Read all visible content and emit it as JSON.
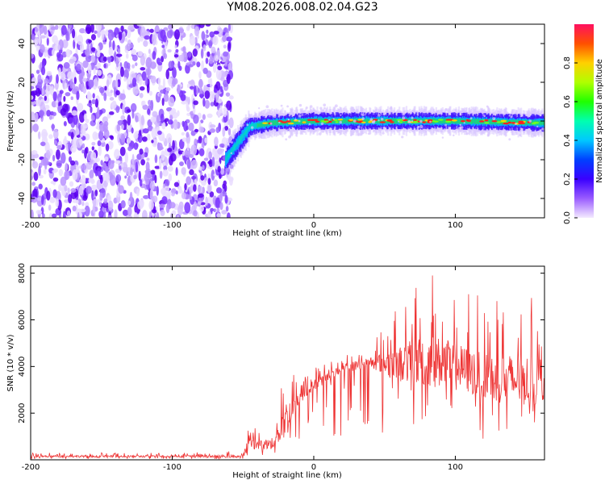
{
  "title": "YM08.2026.008.02.04.G23",
  "chart_data": [
    {
      "type": "heatmap",
      "xlabel": "Height of straight line (km)",
      "ylabel": "Frequency (Hz)",
      "xlim": [
        -200,
        163
      ],
      "ylim": [
        -50,
        50
      ],
      "xticks": [
        -200,
        -100,
        0,
        100
      ],
      "yticks": [
        -40,
        -20,
        0,
        20,
        40
      ],
      "colorbar": {
        "label": "Normalized spectral amplitude",
        "range": [
          0,
          1
        ],
        "ticks": [
          0.0,
          0.2,
          0.4,
          0.6,
          0.8
        ],
        "colormap": "rainbow (purple-blue-cyan-green-yellow-red)"
      },
      "description_points": [
        {
          "x": -200,
          "band": "noise"
        },
        {
          "x": -62,
          "center": -20,
          "band": "signal"
        },
        {
          "x": -45,
          "center": -3
        },
        {
          "x": -30,
          "center": -1
        },
        {
          "x": 0,
          "center": 0
        },
        {
          "x": 50,
          "center": 0
        },
        {
          "x": 100,
          "center": 0
        },
        {
          "x": 163,
          "center": -1
        }
      ]
    },
    {
      "type": "line",
      "xlabel": "Height of straight line (km)",
      "ylabel": "SNR (10 * v/v)",
      "xlim": [
        -200,
        163
      ],
      "ylim": [
        0,
        8300
      ],
      "xticks": [
        -200,
        -100,
        0,
        100
      ],
      "yticks": [
        2000,
        4000,
        6000,
        8000
      ],
      "color": "#ee3333",
      "envelope": {
        "x": [
          -200,
          -100,
          -50,
          -45,
          -40,
          -30,
          -20,
          -10,
          0,
          20,
          40,
          60,
          80,
          100,
          120,
          140,
          163
        ],
        "mean": [
          150,
          150,
          150,
          900,
          600,
          700,
          1700,
          2600,
          3200,
          3900,
          4200,
          4100,
          4300,
          4000,
          3600,
          3400,
          3400
        ],
        "peak": [
          300,
          300,
          350,
          2000,
          1300,
          1500,
          4600,
          3400,
          4000,
          4500,
          5000,
          6600,
          8200,
          7400,
          7000,
          7200,
          6800
        ]
      }
    }
  ]
}
